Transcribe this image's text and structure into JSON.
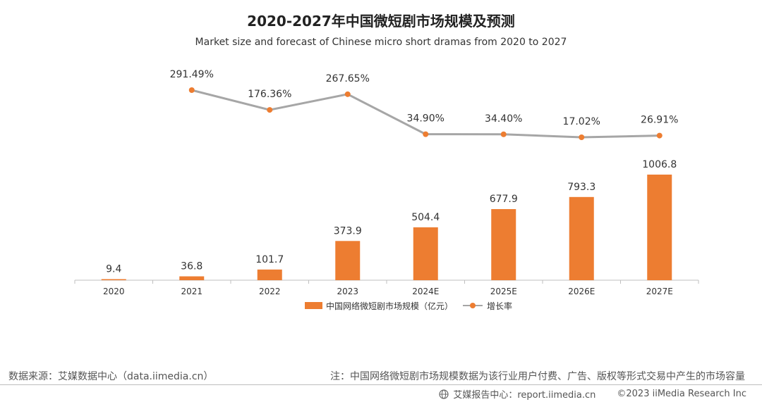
{
  "header": {
    "title": "2020-2027年中国微短剧市场规模及预测",
    "subtitle": "Market size and forecast of Chinese micro short dramas from 2020 to 2027"
  },
  "chart_data": {
    "type": "bar",
    "categories": [
      "2020",
      "2021",
      "2022",
      "2023",
      "2024E",
      "2025E",
      "2026E",
      "2027E"
    ],
    "series": [
      {
        "name": "中国网络微短剧市场规模（亿元）",
        "type": "bar",
        "values": [
          9.4,
          36.8,
          101.7,
          373.9,
          504.4,
          677.9,
          793.3,
          1006.8
        ],
        "labels": [
          "9.4",
          "36.8",
          "101.7",
          "373.9",
          "504.4",
          "677.9",
          "793.3",
          "1006.8"
        ],
        "color": "#ed7d31"
      },
      {
        "name": "增长率",
        "type": "line",
        "values": [
          null,
          291.49,
          176.36,
          267.65,
          34.9,
          34.4,
          17.02,
          26.91
        ],
        "labels": [
          "",
          "291.49%",
          "176.36%",
          "267.65%",
          "34.90%",
          "34.40%",
          "17.02%",
          "26.91%"
        ],
        "line_color": "#a6a6a6",
        "marker_color": "#ed7d31"
      }
    ],
    "legend": "bottom-center",
    "grid": false
  },
  "footer": {
    "source": "数据来源：艾媒数据中心（data.iimedia.cn）",
    "note": "注：中国网络微短剧市场规模数据为该行业用户付费、广告、版权等形式交易中产生的市场容量",
    "report_center": "艾媒报告中心：report.iimedia.cn",
    "copyright": "©2023  iiMedia Research Inc"
  }
}
